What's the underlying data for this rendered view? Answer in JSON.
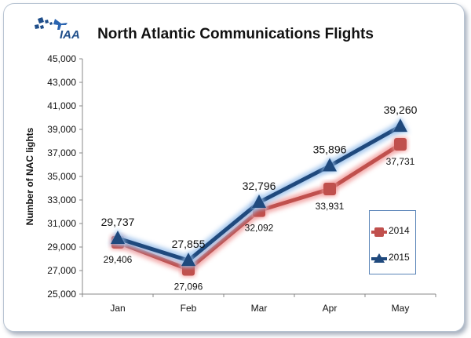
{
  "logo": {
    "text": "IAA"
  },
  "chart_data": {
    "type": "line",
    "title": "North Atlantic Communications Flights",
    "xlabel": "",
    "ylabel": "Number of  NAC lights",
    "categories": [
      "Jan",
      "Feb",
      "Mar",
      "Apr",
      "May"
    ],
    "ylim": [
      25000,
      45000
    ],
    "yticks": [
      "25,000",
      "27,000",
      "29,000",
      "31,000",
      "33,000",
      "35,000",
      "37,000",
      "39,000",
      "41,000",
      "43,000",
      "45,000"
    ],
    "grid": false,
    "legend_position": "right",
    "series": [
      {
        "name": "2014",
        "values": [
          29406,
          27096,
          32092,
          33931,
          37731
        ],
        "labels": [
          "29,406",
          "27,096",
          "32,092",
          "33,931",
          "37,731"
        ],
        "color": "#c0504d",
        "glow": "#f2a0a0",
        "marker": "square"
      },
      {
        "name": "2015",
        "values": [
          29737,
          27855,
          32796,
          35896,
          39260
        ],
        "labels": [
          "29,737",
          "27,855",
          "32,796",
          "35,896",
          "39,260"
        ],
        "color": "#1f497d",
        "glow": "#9ec3ec",
        "marker": "triangle"
      }
    ]
  }
}
